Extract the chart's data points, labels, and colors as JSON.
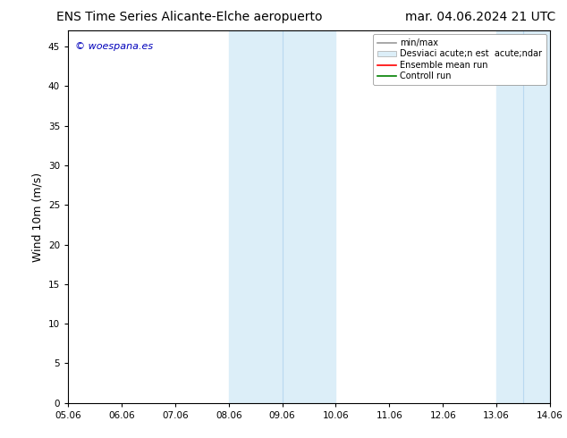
{
  "title_left": "ENS Time Series Alicante-Elche aeropuerto",
  "title_right": "mar. 04.06.2024 21 UTC",
  "ylabel": "Wind 10m (m/s)",
  "xlim_days": [
    0,
    9
  ],
  "ylim": [
    0,
    47
  ],
  "yticks": [
    0,
    5,
    10,
    15,
    20,
    25,
    30,
    35,
    40,
    45
  ],
  "xtick_positions": [
    0,
    1,
    2,
    3,
    4,
    5,
    6,
    7,
    8,
    9
  ],
  "xtick_labels": [
    "05.06",
    "06.06",
    "07.06",
    "08.06",
    "09.06",
    "10.06",
    "11.06",
    "12.06",
    "13.06",
    "14.06"
  ],
  "shaded_bands": [
    {
      "xstart": 3,
      "xend": 5,
      "color": "#dceef8"
    },
    {
      "xstart": 8,
      "xend": 9,
      "color": "#dceef8"
    }
  ],
  "inner_vlines": [
    {
      "x": 4,
      "color": "#b8d8f0"
    },
    {
      "x": 8.5,
      "color": "#b8d8f0"
    }
  ],
  "watermark_text": "© woespana.es",
  "watermark_color": "#0000bb",
  "legend_labels": [
    "min/max",
    "Desviaci acute;n est  acute;ndar",
    "Ensemble mean run",
    "Controll run"
  ],
  "legend_line_colors": [
    "#999999",
    "#dceef8",
    "#ff0000",
    "#008000"
  ],
  "bg_color": "#ffffff",
  "spine_color": "#000000",
  "title_fontsize": 10,
  "tick_fontsize": 7.5,
  "ylabel_fontsize": 9,
  "legend_fontsize": 7
}
